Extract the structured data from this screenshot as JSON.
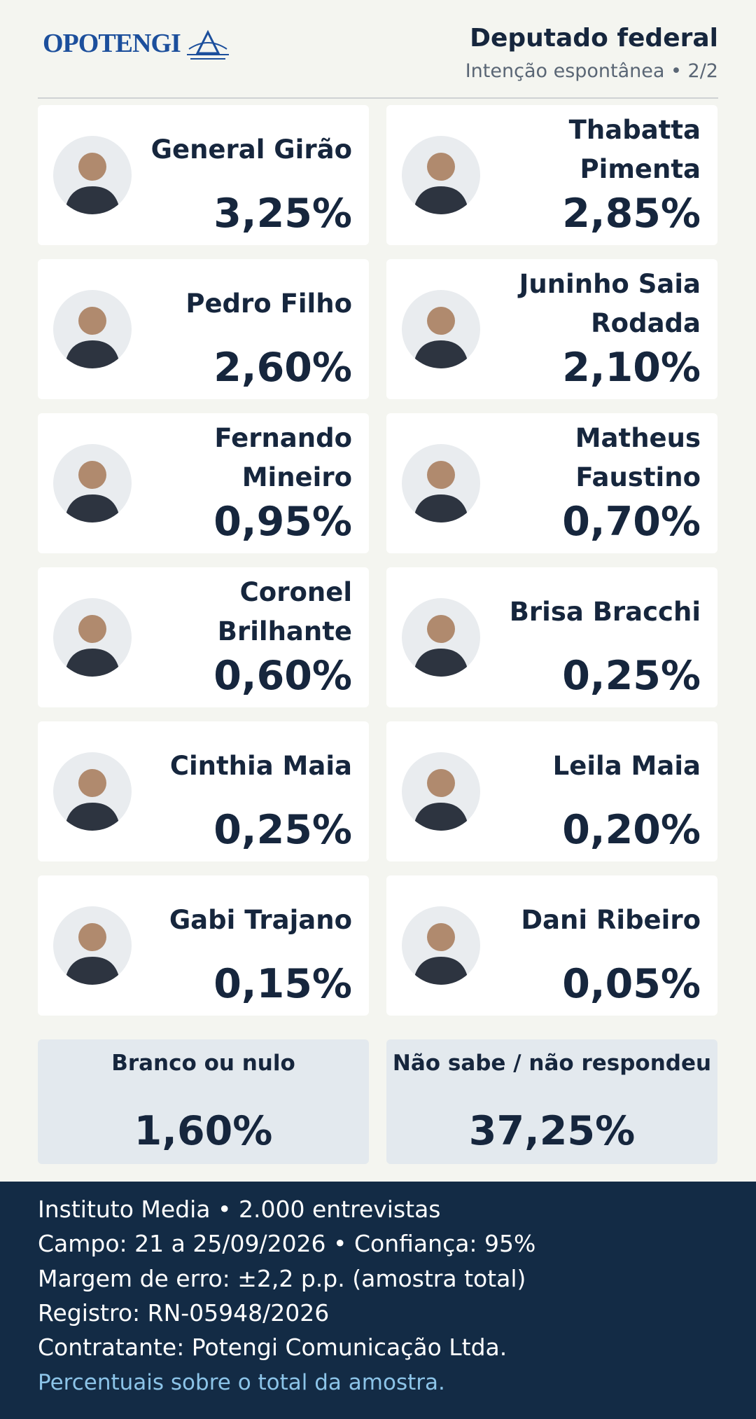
{
  "header": {
    "logo": "OPOTENGI",
    "title": "Deputado federal",
    "subtitle": "Intenção espontânea • 2/2"
  },
  "candidates": [
    {
      "name": "General Girão",
      "value": "3,25%"
    },
    {
      "name": "Thabatta Pimenta",
      "value": "2,85%"
    },
    {
      "name": "Pedro Filho",
      "value": "2,60%"
    },
    {
      "name": "Juninho Saia Rodada",
      "value": "2,10%"
    },
    {
      "name": "Fernando Mineiro",
      "value": "0,95%"
    },
    {
      "name": "Matheus Faustino",
      "value": "0,70%"
    },
    {
      "name": "Coronel Brilhante",
      "value": "0,60%"
    },
    {
      "name": "Brisa Bracchi",
      "value": "0,25%"
    },
    {
      "name": "Cinthia Maia",
      "value": "0,25%"
    },
    {
      "name": "Leila Maia",
      "value": "0,20%"
    },
    {
      "name": "Gabi Trajano",
      "value": "0,15%"
    },
    {
      "name": "Dani Ribeiro",
      "value": "0,05%"
    }
  ],
  "others": [
    {
      "label": "Branco ou nulo",
      "value": "1,60%"
    },
    {
      "label": "Não sabe / não respondeu",
      "value": "37,25%"
    }
  ],
  "footer": {
    "lines": [
      "Instituto Media • 2.000 entrevistas",
      "Campo: 21 a 25/09/2026 • Confiança: 95%",
      "Margem de erro: ±2,2 p.p. (amostra total)",
      "Registro: RN-05948/2026",
      "Contratante: Potengi Comunicação Ltda."
    ],
    "note": "Percentuais sobre o total da amostra."
  }
}
